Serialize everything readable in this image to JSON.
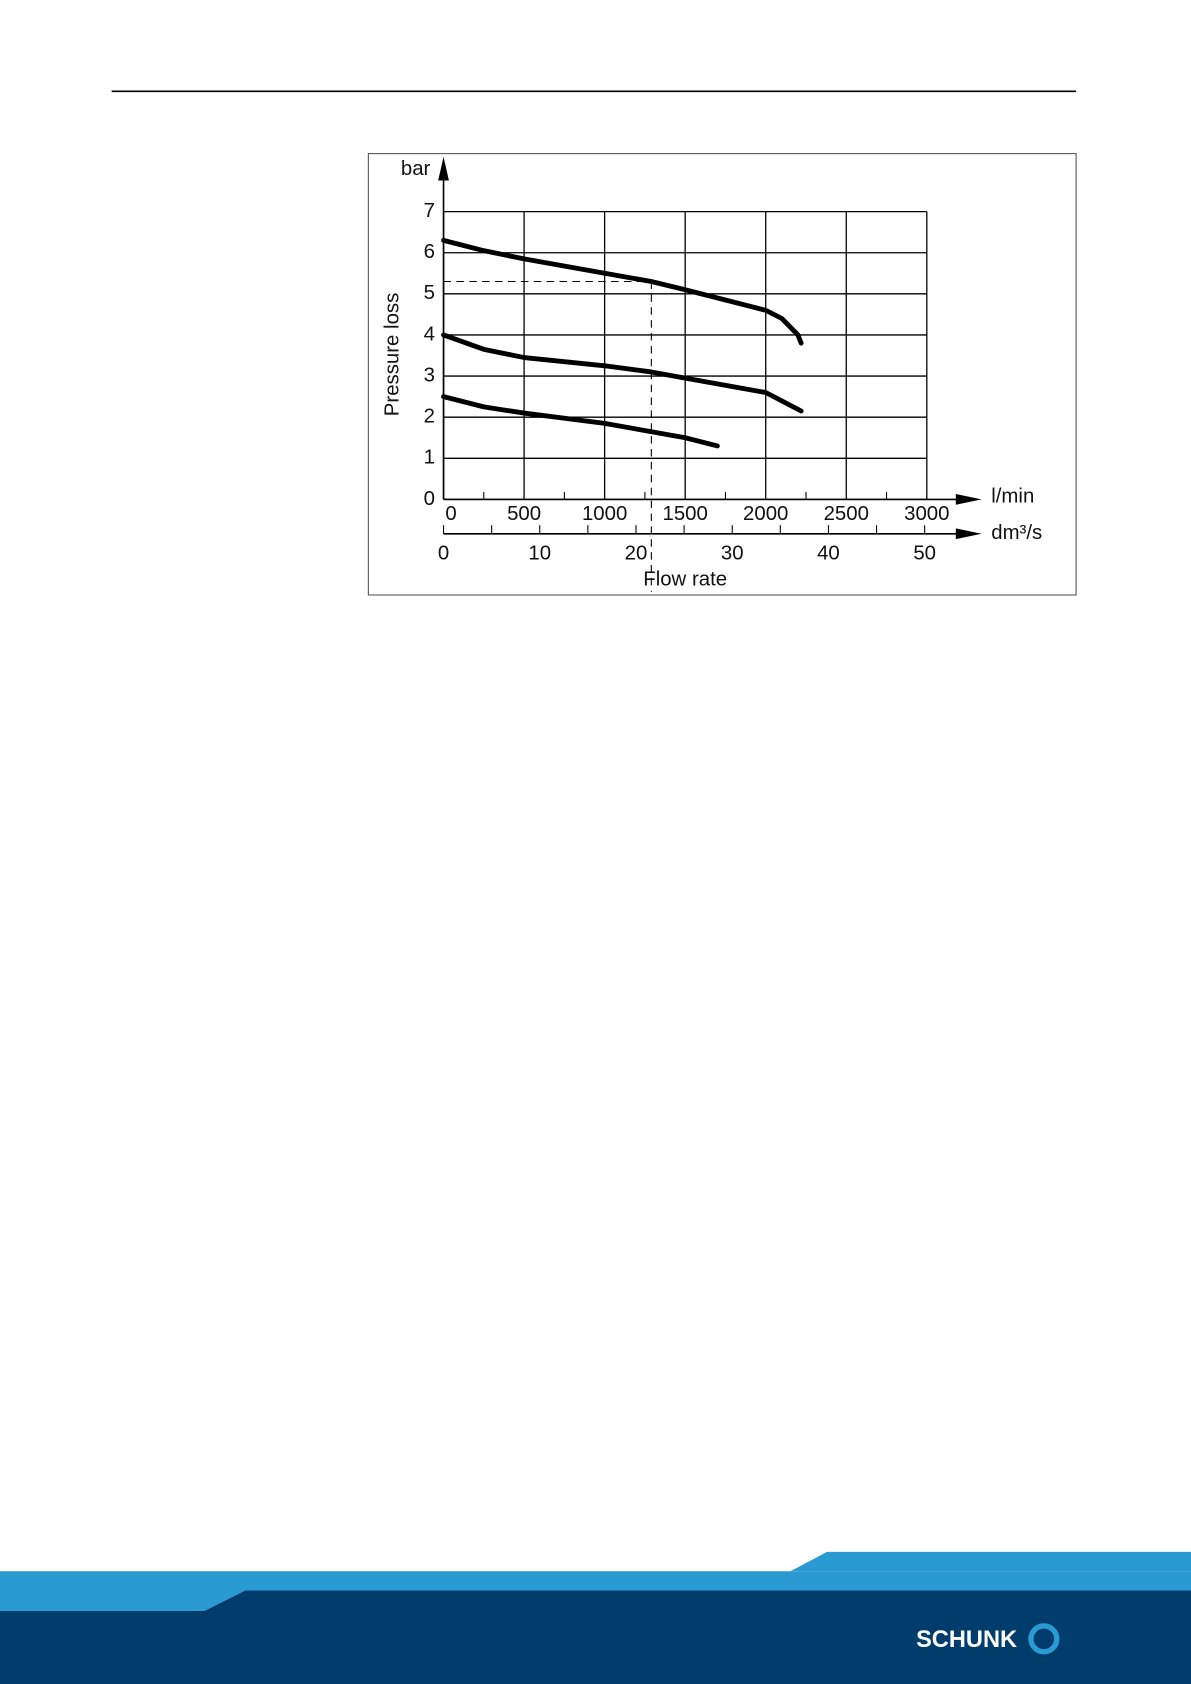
{
  "chart_data": {
    "type": "line",
    "y_unit": "bar",
    "ylabel": "Pressure loss",
    "x_unit": "l/min",
    "x2_unit": "dm³/s",
    "xlabel": "Flow rate",
    "xlim": [
      0,
      3000
    ],
    "xticks": [
      0,
      500,
      1000,
      1500,
      2000,
      2500,
      3000
    ],
    "x2lim": [
      0,
      50
    ],
    "x2ticks": [
      0,
      10,
      20,
      30,
      40,
      50
    ],
    "ylim": [
      0,
      7
    ],
    "yticks": [
      0,
      1,
      2,
      3,
      4,
      5,
      6,
      7
    ],
    "grid": true,
    "color": "#000000",
    "series": [
      {
        "x": [
          0,
          250,
          500,
          1000,
          1290,
          1500,
          1750,
          2000,
          2100,
          2200,
          2220
        ],
        "values": [
          6.3,
          6.05,
          5.85,
          5.5,
          5.3,
          5.1,
          4.85,
          4.6,
          4.4,
          4.0,
          3.8
        ]
      },
      {
        "x": [
          0,
          250,
          500,
          1000,
          1290,
          1500,
          2000,
          2220
        ],
        "values": [
          4.0,
          3.65,
          3.45,
          3.25,
          3.1,
          2.95,
          2.6,
          2.15
        ]
      },
      {
        "x": [
          0,
          250,
          500,
          1000,
          1500,
          1700
        ],
        "values": [
          2.5,
          2.25,
          2.1,
          1.85,
          1.5,
          1.3
        ]
      }
    ],
    "reference": {
      "x": 1290,
      "y": 5.3
    }
  },
  "footer": {
    "logo": "SCHUNK"
  }
}
